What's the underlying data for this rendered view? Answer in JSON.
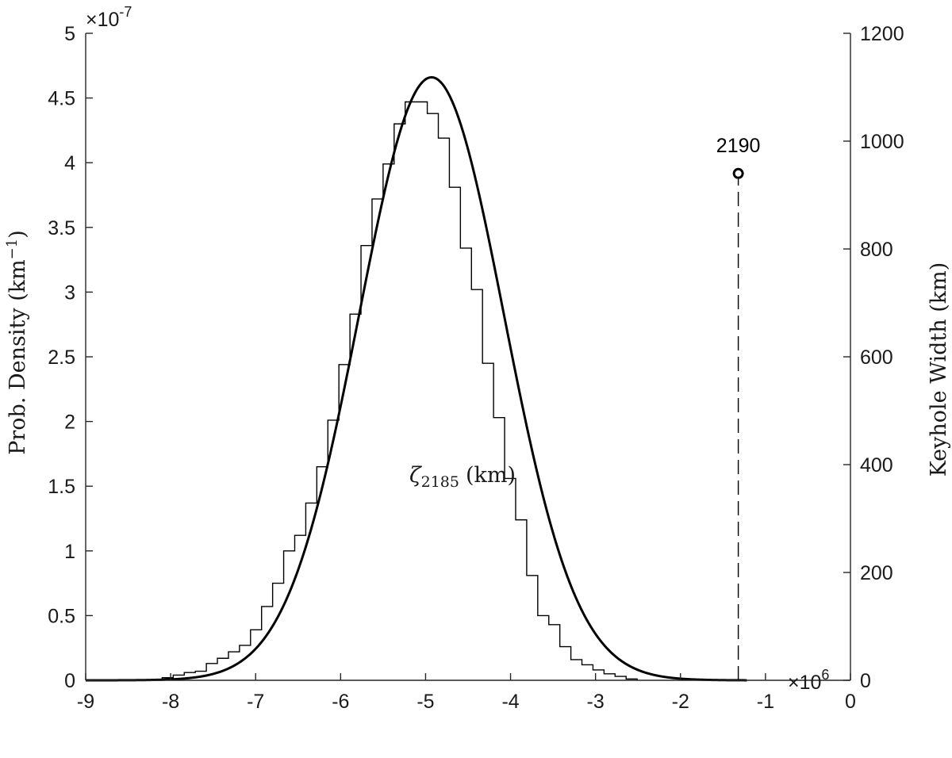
{
  "chart_data": {
    "type": "histogram+line",
    "xlabel_main": "ζ",
    "xlabel_sub": "2185",
    "xlabel_unit": "(km)",
    "ylabel_left_main": "Prob. Density (km",
    "ylabel_left_sup": "−1",
    "ylabel_left_close": ")",
    "ylabel_right": "Keyhole Width (km)",
    "x_exponent_base": "×10",
    "x_exponent_power": "6",
    "y_exponent_base": "×10",
    "y_exponent_power": "-7",
    "xlim": [
      -9,
      0
    ],
    "ylim_left": [
      0,
      5
    ],
    "ylim_right": [
      0,
      1200
    ],
    "x_ticks": [
      "-9",
      "-8",
      "-7",
      "-6",
      "-5",
      "-4",
      "-3",
      "-2",
      "-1",
      "0"
    ],
    "y_left_ticks": [
      "0",
      "0.5",
      "1",
      "1.5",
      "2",
      "2.5",
      "3",
      "3.5",
      "4",
      "4.5",
      "5"
    ],
    "y_right_ticks": [
      "0",
      "200",
      "400",
      "600",
      "800",
      "1000",
      "1200"
    ],
    "histogram": {
      "bin_width": 0.13,
      "bin_edges_start": -8.1,
      "values": [
        0.02,
        0.04,
        0.06,
        0.07,
        0.13,
        0.17,
        0.22,
        0.27,
        0.39,
        0.57,
        0.75,
        1.0,
        1.12,
        1.37,
        1.65,
        2.01,
        2.44,
        2.83,
        3.36,
        3.72,
        3.99,
        4.3,
        4.47,
        4.47,
        4.38,
        4.19,
        3.81,
        3.34,
        3.02,
        2.45,
        2.03,
        1.56,
        1.24,
        0.81,
        0.5,
        0.43,
        0.26,
        0.16,
        0.12,
        0.08,
        0.05,
        0.03,
        0.01
      ]
    },
    "density_curve": {
      "mean": -4.93,
      "sigma": 0.852,
      "peak": 4.66,
      "x_range": [
        -9,
        -1.22
      ]
    },
    "keyhole": {
      "label": "2190",
      "x": -1.32,
      "width_km": 940
    }
  }
}
